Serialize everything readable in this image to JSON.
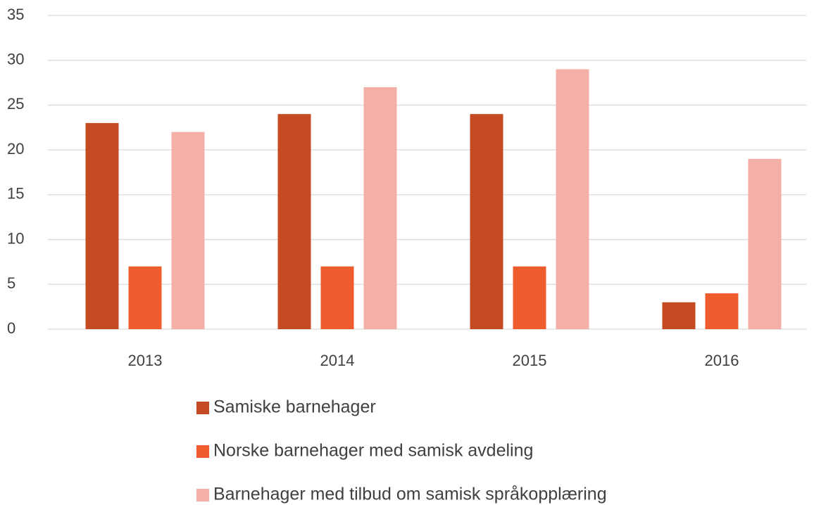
{
  "chart_data": {
    "type": "bar",
    "categories": [
      "2013",
      "2014",
      "2015",
      "2016"
    ],
    "series": [
      {
        "name": "Samiske barnehager",
        "color": "#c44a22",
        "values": [
          23,
          24,
          24,
          3
        ]
      },
      {
        "name": "Norske barnehager med samisk avdeling",
        "color": "#ef5d2f",
        "values": [
          7,
          7,
          7,
          4
        ]
      },
      {
        "name": "Barnehager med tilbud om samisk språkopplæring",
        "color": "#f4afa6",
        "values": [
          22,
          27,
          29,
          19
        ]
      }
    ],
    "ylim": [
      0,
      35
    ],
    "yticks": [
      0,
      5,
      10,
      15,
      20,
      25,
      30,
      35
    ],
    "grid": true,
    "legend": "bottom"
  }
}
